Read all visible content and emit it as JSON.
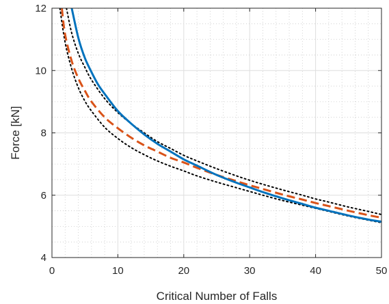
{
  "chart_data": {
    "type": "line",
    "title": "",
    "xlabel": "Critical Number of Falls",
    "ylabel": "Force [kN]",
    "xlim": [
      0,
      50
    ],
    "ylim": [
      4,
      12
    ],
    "xticks": [
      0,
      10,
      20,
      30,
      40,
      50
    ],
    "yticks": [
      4,
      6,
      8,
      10,
      12
    ],
    "xtick_labels": [
      "0",
      "10",
      "20",
      "30",
      "40",
      "50"
    ],
    "ytick_labels": [
      "4",
      "6",
      "8",
      "10",
      "12"
    ],
    "grid": true,
    "minor_grid": true,
    "legend": "none",
    "series": [
      {
        "color": "#0072BD",
        "style": "solid",
        "x": [
          3,
          4,
          5,
          6,
          7,
          8,
          10,
          12,
          14,
          16,
          18,
          20,
          22,
          25,
          28,
          30,
          32,
          35,
          38,
          40,
          42,
          45,
          48,
          50
        ],
        "y": [
          12.0,
          11.05,
          10.4,
          9.95,
          9.55,
          9.25,
          8.7,
          8.3,
          7.95,
          7.65,
          7.4,
          7.15,
          6.95,
          6.65,
          6.4,
          6.25,
          6.1,
          5.9,
          5.72,
          5.6,
          5.5,
          5.35,
          5.22,
          5.15
        ]
      },
      {
        "color": "#D95319",
        "style": "dashed",
        "x": [
          1.5,
          2,
          3,
          4,
          5,
          6,
          8,
          10,
          12,
          14,
          16,
          18,
          20,
          22,
          25,
          28,
          30,
          32,
          35,
          38,
          40,
          42,
          45,
          48,
          50
        ],
        "y": [
          12.0,
          11.15,
          10.3,
          9.75,
          9.35,
          9.0,
          8.5,
          8.15,
          7.85,
          7.6,
          7.4,
          7.2,
          7.05,
          6.88,
          6.65,
          6.45,
          6.32,
          6.2,
          6.02,
          5.86,
          5.75,
          5.65,
          5.5,
          5.36,
          5.28
        ]
      },
      {
        "color": "#000000",
        "style": "dotted",
        "x": [
          2.2,
          3,
          4,
          5,
          6,
          8,
          10,
          12,
          14,
          16,
          18,
          20,
          22,
          25,
          28,
          30,
          32,
          35,
          38,
          40,
          42,
          45,
          48,
          50
        ],
        "y": [
          12.0,
          11.2,
          10.55,
          10.1,
          9.7,
          9.1,
          8.65,
          8.3,
          8.0,
          7.72,
          7.5,
          7.28,
          7.1,
          6.85,
          6.62,
          6.48,
          6.35,
          6.17,
          6.0,
          5.88,
          5.78,
          5.62,
          5.48,
          5.38
        ]
      },
      {
        "color": "#000000",
        "style": "dotted",
        "x": [
          1.2,
          2,
          3,
          4,
          5,
          6,
          8,
          10,
          12,
          14,
          16,
          18,
          20,
          22,
          25,
          28,
          30,
          32,
          35,
          38,
          40,
          42,
          45,
          48,
          50
        ],
        "y": [
          12.0,
          10.9,
          10.05,
          9.45,
          9.02,
          8.7,
          8.18,
          7.82,
          7.53,
          7.3,
          7.1,
          6.93,
          6.78,
          6.62,
          6.42,
          6.24,
          6.12,
          6.0,
          5.83,
          5.68,
          5.58,
          5.48,
          5.33,
          5.2,
          5.12
        ]
      }
    ]
  }
}
